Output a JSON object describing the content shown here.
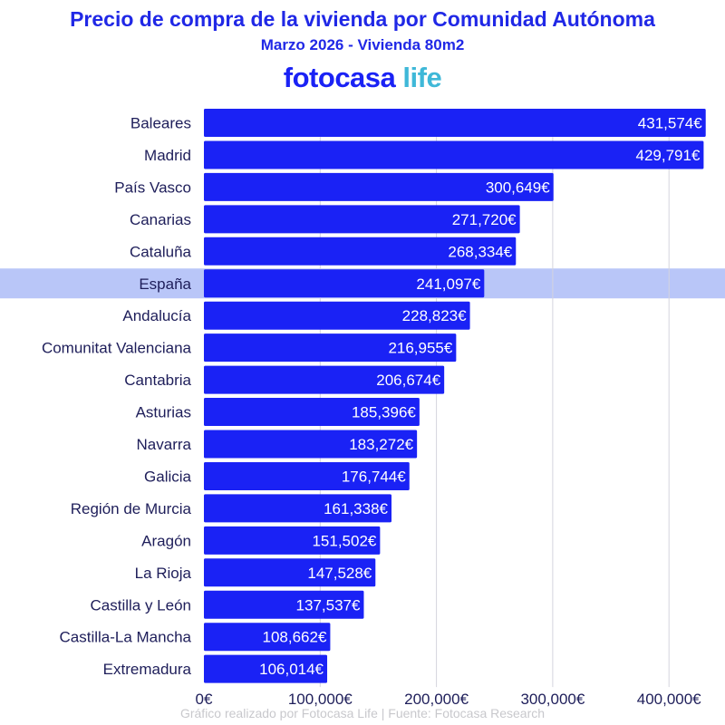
{
  "title": "Precio de compra de la vivienda por Comunidad Autónoma",
  "subtitle": "Marzo 2026 - Vivienda 80m2",
  "logo": {
    "brand": "fotocasa",
    "suffix": "life"
  },
  "footer": "Gráfico realizado por Fotocasa Life | Fuente: Fotocasa Research",
  "colors": {
    "bar": "#1a22f5",
    "highlight": "#b9c6f8",
    "text": "#1e1e5a",
    "title": "#2028e6"
  },
  "chart_data": {
    "type": "bar",
    "orientation": "horizontal",
    "categories": [
      "Baleares",
      "Madrid",
      "País Vasco",
      "Canarias",
      "Cataluña",
      "España",
      "Andalucía",
      "Comunitat Valenciana",
      "Cantabria",
      "Asturias",
      "Navarra",
      "Galicia",
      "Región de Murcia",
      "Aragón",
      "La Rioja",
      "Castilla y León",
      "Castilla-La Mancha",
      "Extremadura"
    ],
    "values": [
      431574,
      429791,
      300649,
      271720,
      268334,
      241097,
      228823,
      216955,
      206674,
      185396,
      183272,
      176744,
      161338,
      151502,
      147528,
      137537,
      108662,
      106014
    ],
    "value_labels": [
      "431,574€",
      "429,791€",
      "300,649€",
      "271,720€",
      "268,334€",
      "241,097€",
      "228,823€",
      "216,955€",
      "206,674€",
      "185,396€",
      "183,272€",
      "176,744€",
      "161,338€",
      "151,502€",
      "147,528€",
      "137,537€",
      "108,662€",
      "106,014€"
    ],
    "highlight": "España",
    "xlim": [
      0,
      431574
    ],
    "xticks": [
      0,
      100000,
      200000,
      300000,
      400000
    ],
    "xtick_labels": [
      "0€",
      "100,000€",
      "200,000€",
      "300,000€",
      "400,000€"
    ],
    "grid": "vertical"
  }
}
